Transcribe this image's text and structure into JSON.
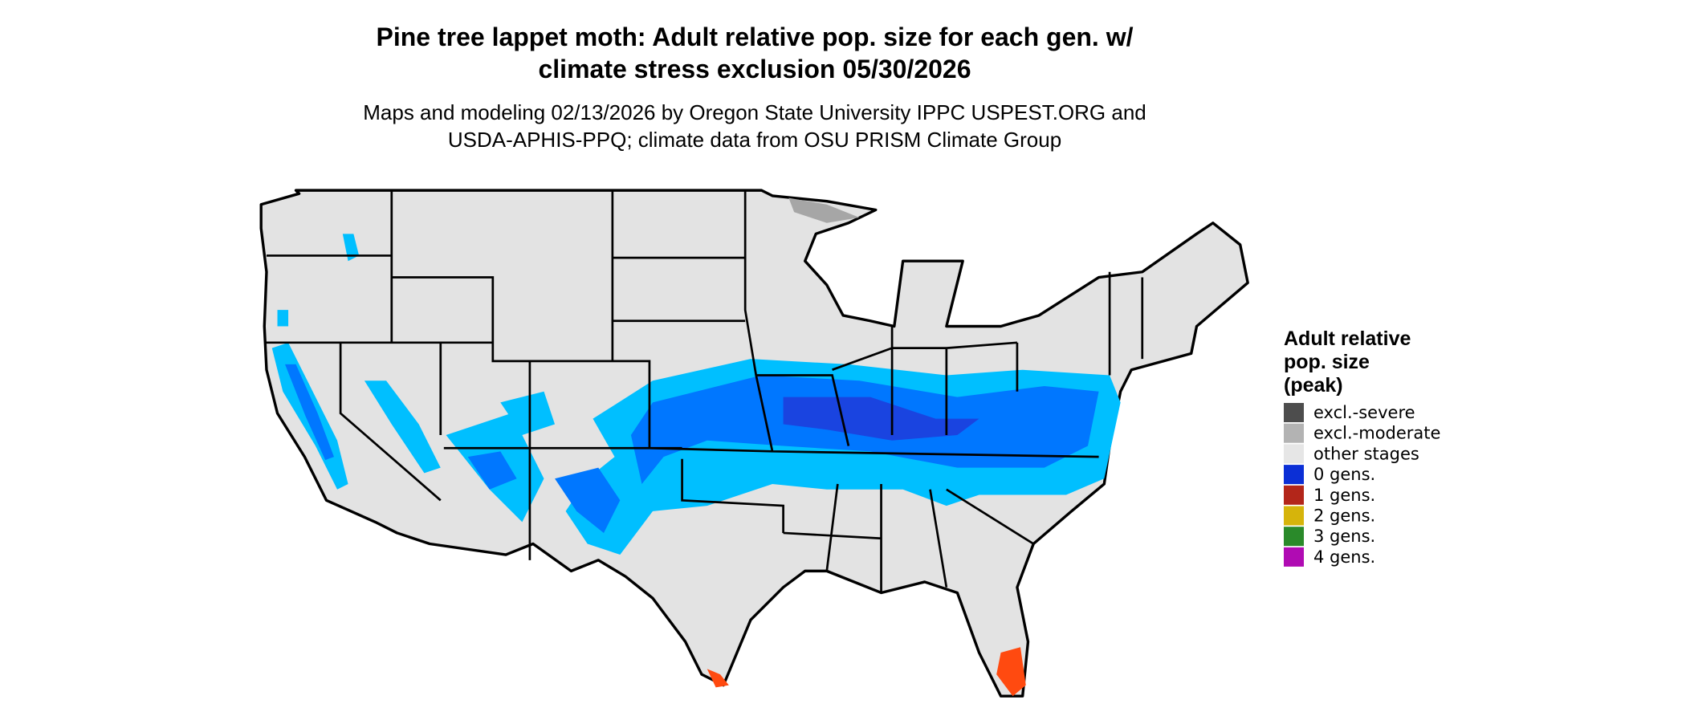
{
  "title": [
    "Pine tree lappet moth: Adult relative pop. size for each gen. w/",
    "climate stress exclusion 05/30/2026"
  ],
  "subtitle": [
    "Maps and modeling 02/13/2026 by Oregon State University IPPC USPEST.ORG and",
    "USDA-APHIS-PPQ; climate data from OSU PRISM Climate Group"
  ],
  "legend": {
    "title": [
      "Adult relative",
      "pop. size",
      "(peak)"
    ],
    "items": [
      {
        "label": "excl.-severe",
        "color": "#4d4d4d"
      },
      {
        "label": "excl.-moderate",
        "color": "#b3b3b3"
      },
      {
        "label": "other stages",
        "color": "#e6e6e6"
      },
      {
        "label": "0 gens.",
        "color": "#0b2fd6"
      },
      {
        "label": "1 gens.",
        "color": "#b3261a"
      },
      {
        "label": "2 gens.",
        "color": "#d6b40b"
      },
      {
        "label": "3 gens.",
        "color": "#2a8a2a"
      },
      {
        "label": "4 gens.",
        "color": "#b00bb3"
      }
    ]
  }
}
